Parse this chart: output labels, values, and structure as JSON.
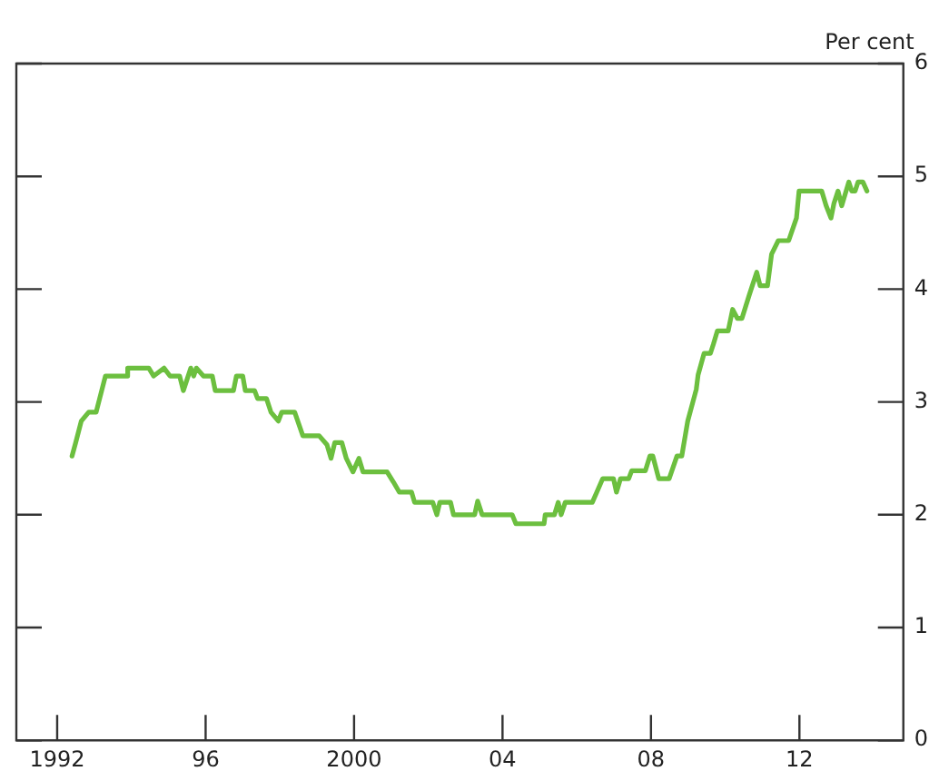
{
  "chart_data": {
    "type": "line",
    "ylabel": "Per cent",
    "x": [
      1992.4,
      1992.5,
      1992.65,
      1992.85,
      1993.05,
      1993.3,
      1993.9,
      1993.9,
      1994.47,
      1994.6,
      1994.88,
      1995.04,
      1995.3,
      1995.4,
      1995.6,
      1995.68,
      1995.75,
      1995.94,
      1996.18,
      1996.26,
      1996.75,
      1996.83,
      1997.0,
      1997.07,
      1997.32,
      1997.4,
      1997.64,
      1997.76,
      1997.96,
      1998.05,
      1998.4,
      1998.62,
      1999.06,
      1999.27,
      1999.38,
      1999.48,
      1999.67,
      1999.79,
      1999.97,
      2000.13,
      2000.24,
      2000.89,
      2001.06,
      2001.22,
      2001.55,
      2001.63,
      2002.12,
      2002.23,
      2002.31,
      2002.6,
      2002.68,
      2003.25,
      2003.33,
      2003.45,
      2004.26,
      2004.36,
      2005.12,
      2005.15,
      2005.4,
      2005.5,
      2005.58,
      2005.69,
      2006.42,
      2006.54,
      2006.7,
      2006.99,
      2007.07,
      2007.18,
      2007.4,
      2007.48,
      2007.85,
      2007.97,
      2008.05,
      2008.21,
      2008.49,
      2008.7,
      2008.83,
      2008.99,
      2009.22,
      2009.27,
      2009.43,
      2009.6,
      2009.68,
      2009.79,
      2010.08,
      2010.2,
      2010.33,
      2010.45,
      2010.65,
      2010.73,
      2010.85,
      2010.94,
      2011.14,
      2011.25,
      2011.43,
      2011.71,
      2011.92,
      2011.99,
      2012.6,
      2012.72,
      2012.85,
      2012.93,
      2013.04,
      2013.14,
      2013.33,
      2013.41,
      2013.5,
      2013.58,
      2013.71,
      2013.82
    ],
    "series": [
      {
        "color": "#6cbf3f",
        "values": [
          2.52,
          2.64,
          2.83,
          2.91,
          2.91,
          3.23,
          3.23,
          3.3,
          3.3,
          3.23,
          3.3,
          3.23,
          3.23,
          3.1,
          3.3,
          3.23,
          3.3,
          3.23,
          3.23,
          3.1,
          3.1,
          3.23,
          3.23,
          3.1,
          3.1,
          3.03,
          3.03,
          2.91,
          2.83,
          2.91,
          2.91,
          2.7,
          2.7,
          2.62,
          2.5,
          2.64,
          2.64,
          2.5,
          2.38,
          2.5,
          2.38,
          2.38,
          2.29,
          2.2,
          2.2,
          2.11,
          2.11,
          2.0,
          2.11,
          2.11,
          2.0,
          2.0,
          2.12,
          2.0,
          2.0,
          1.92,
          1.92,
          2.0,
          2.0,
          2.11,
          2.0,
          2.11,
          2.11,
          2.2,
          2.32,
          2.32,
          2.2,
          2.32,
          2.32,
          2.39,
          2.39,
          2.52,
          2.52,
          2.32,
          2.32,
          2.52,
          2.52,
          2.83,
          3.11,
          3.24,
          3.43,
          3.43,
          3.51,
          3.63,
          3.63,
          3.82,
          3.74,
          3.74,
          3.95,
          4.03,
          4.15,
          4.03,
          4.03,
          4.31,
          4.43,
          4.43,
          4.63,
          4.87,
          4.87,
          4.74,
          4.63,
          4.76,
          4.87,
          4.74,
          4.95,
          4.87,
          4.87,
          4.95,
          4.95,
          4.87
        ]
      }
    ],
    "xlim": [
      1990.9,
      2014.8
    ],
    "xticks": [
      {
        "value": 1992,
        "label": "1992"
      },
      {
        "value": 1996,
        "label": "96"
      },
      {
        "value": 2000,
        "label": "2000"
      },
      {
        "value": 2004,
        "label": "04"
      },
      {
        "value": 2008,
        "label": "08"
      },
      {
        "value": 2012,
        "label": "12"
      }
    ],
    "ylim": [
      0,
      6
    ],
    "yticks": [
      0,
      1,
      2,
      3,
      4,
      5,
      6
    ],
    "grid": false,
    "legend": false,
    "marker": "none",
    "line_style": "solid"
  }
}
